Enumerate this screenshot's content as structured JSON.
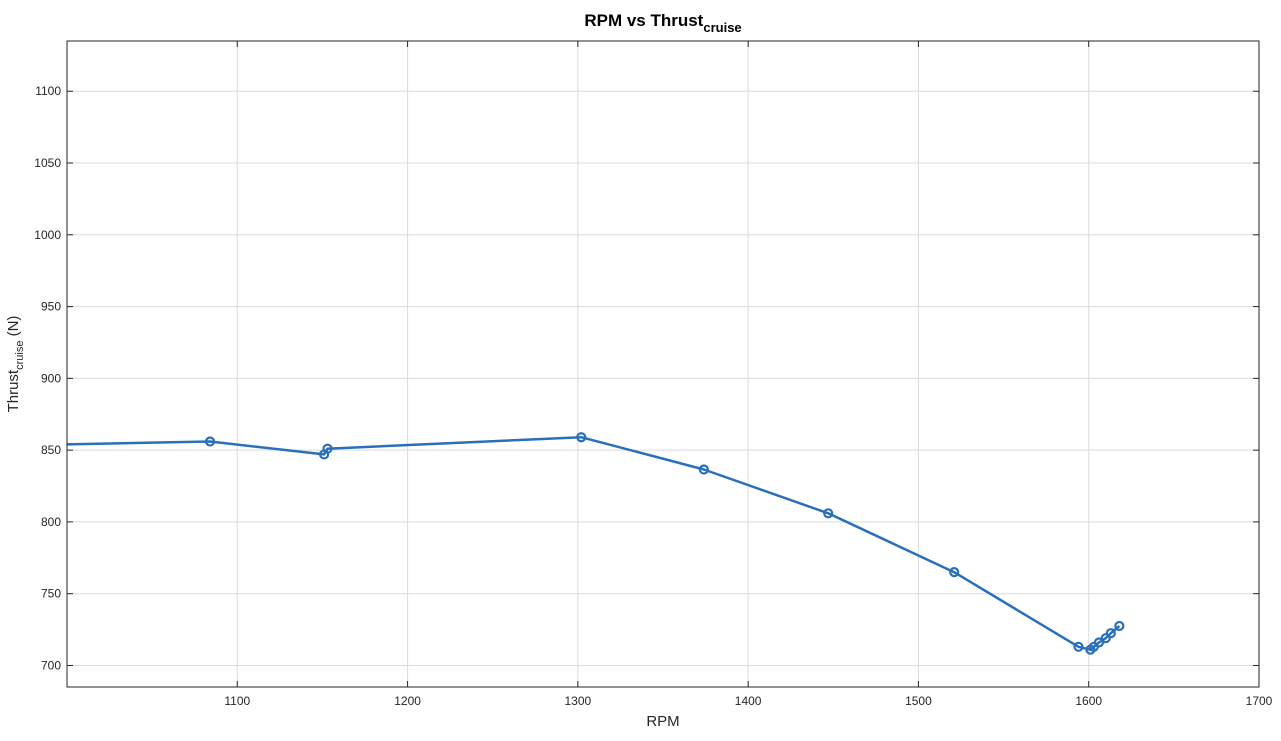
{
  "chart_data": {
    "type": "line",
    "title_main": "RPM vs Thrust",
    "title_sub": "cruise",
    "xlabel": "RPM",
    "ylabel_main": "Thrust",
    "ylabel_sub": "cruise",
    "ylabel_unit": " (N)",
    "xlim": [
      1000,
      1700
    ],
    "ylim": [
      685,
      1135
    ],
    "xticks": [
      1100,
      1200,
      1300,
      1400,
      1500,
      1600,
      1700
    ],
    "yticks": [
      700,
      750,
      800,
      850,
      900,
      950,
      1000,
      1050,
      1100
    ],
    "grid": true,
    "line_color": "#2a6fba",
    "series": [
      {
        "x": [
          1000,
          1084,
          1151,
          1153,
          1302,
          1374,
          1447,
          1521,
          1594,
          1601,
          1603,
          1606,
          1610,
          1613,
          1618
        ],
        "y": [
          854,
          856,
          847,
          851,
          859,
          836.5,
          806,
          765,
          713,
          711,
          713,
          716,
          719,
          722.5,
          727.5
        ],
        "markers": [
          false,
          true,
          true,
          true,
          true,
          true,
          true,
          true,
          true,
          true,
          true,
          true,
          true,
          true,
          true
        ]
      }
    ]
  }
}
